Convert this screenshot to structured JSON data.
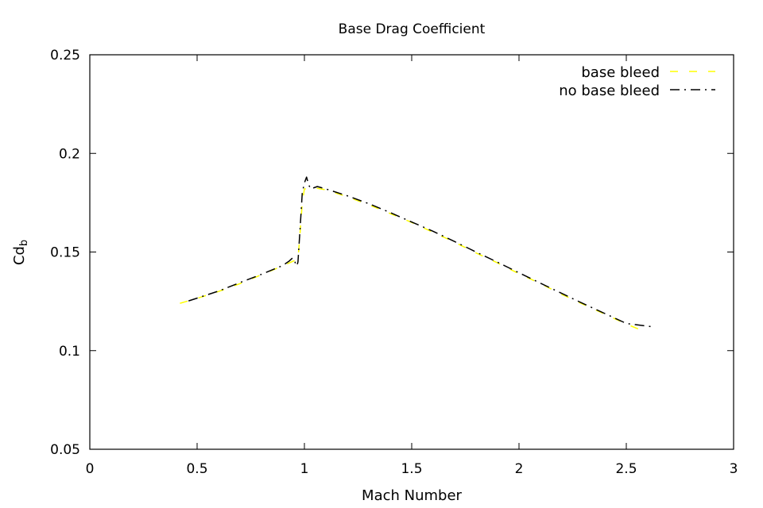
{
  "chart_data": {
    "type": "line",
    "title": "Base Drag Coefficient",
    "xlabel": "Mach Number",
    "ylabel": "Cd",
    "ylabel_subscript": "b",
    "xlim": [
      0,
      3
    ],
    "ylim": [
      0.05,
      0.25
    ],
    "xticks": [
      0,
      0.5,
      1,
      1.5,
      2,
      2.5,
      3
    ],
    "yticks": [
      0.05,
      0.1,
      0.15,
      0.2,
      0.25
    ],
    "xtick_labels": [
      "0",
      "0.5",
      "1",
      "1.5",
      "2",
      "2.5",
      "3"
    ],
    "ytick_labels": [
      "0.05",
      "0.1",
      "0.15",
      "0.2",
      "0.25"
    ],
    "grid": false,
    "legend_position": "top-right",
    "series": [
      {
        "name": "base bleed",
        "color": "#ffff00",
        "dash": "dashed",
        "points": [
          [
            0.42,
            0.124
          ],
          [
            0.5,
            0.1265
          ],
          [
            0.6,
            0.13
          ],
          [
            0.7,
            0.134
          ],
          [
            0.8,
            0.1385
          ],
          [
            0.9,
            0.143
          ],
          [
            0.95,
            0.1455
          ],
          [
            0.97,
            0.146
          ],
          [
            0.98,
            0.16
          ],
          [
            0.99,
            0.175
          ],
          [
            1.0,
            0.182
          ],
          [
            1.05,
            0.1825
          ],
          [
            1.1,
            0.1815
          ],
          [
            1.2,
            0.178
          ],
          [
            1.3,
            0.174
          ],
          [
            1.4,
            0.1695
          ],
          [
            1.5,
            0.165
          ],
          [
            1.6,
            0.16
          ],
          [
            1.7,
            0.155
          ],
          [
            1.8,
            0.1495
          ],
          [
            1.9,
            0.1445
          ],
          [
            2.0,
            0.139
          ],
          [
            2.1,
            0.134
          ],
          [
            2.2,
            0.1285
          ],
          [
            2.3,
            0.1235
          ],
          [
            2.4,
            0.1185
          ],
          [
            2.5,
            0.1135
          ],
          [
            2.6,
            0.109
          ]
        ]
      },
      {
        "name": "no base bleed",
        "color": "#000000",
        "dash": "dash-dot",
        "points": [
          [
            0.46,
            0.1252
          ],
          [
            0.5,
            0.1266
          ],
          [
            0.6,
            0.1302
          ],
          [
            0.7,
            0.1345
          ],
          [
            0.8,
            0.1387
          ],
          [
            0.9,
            0.1432
          ],
          [
            0.93,
            0.1455
          ],
          [
            0.945,
            0.147
          ],
          [
            0.955,
            0.1455
          ],
          [
            0.96,
            0.1435
          ],
          [
            0.965,
            0.143
          ],
          [
            0.97,
            0.145
          ],
          [
            0.98,
            0.162
          ],
          [
            0.99,
            0.18
          ],
          [
            1.0,
            0.185
          ],
          [
            1.01,
            0.188
          ],
          [
            1.02,
            0.184
          ],
          [
            1.03,
            0.182
          ],
          [
            1.06,
            0.1832
          ],
          [
            1.1,
            0.182
          ],
          [
            1.2,
            0.1785
          ],
          [
            1.3,
            0.1745
          ],
          [
            1.4,
            0.17
          ],
          [
            1.5,
            0.1652
          ],
          [
            1.6,
            0.1605
          ],
          [
            1.7,
            0.1553
          ],
          [
            1.8,
            0.15
          ],
          [
            1.9,
            0.1448
          ],
          [
            2.0,
            0.1395
          ],
          [
            2.1,
            0.1342
          ],
          [
            2.2,
            0.129
          ],
          [
            2.3,
            0.1238
          ],
          [
            2.4,
            0.1188
          ],
          [
            2.5,
            0.1138
          ],
          [
            2.63,
            0.112
          ]
        ]
      }
    ]
  }
}
